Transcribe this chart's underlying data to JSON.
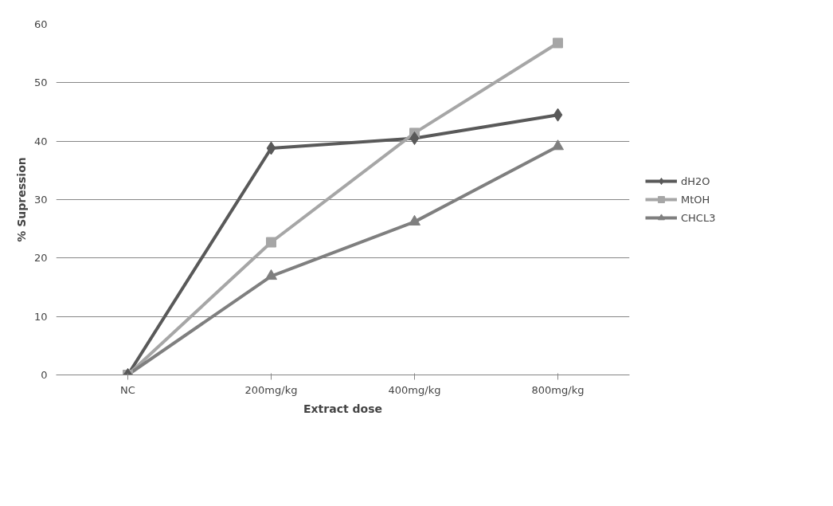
{
  "chart_data": {
    "type": "line",
    "xlabel": "Extract dose",
    "ylabel": "% Supression",
    "categories": [
      "NC",
      "200mg/kg",
      "400mg/kg",
      "800mg/kg"
    ],
    "series": [
      {
        "name": "dH2O",
        "color": "#595959",
        "marker": "diamond",
        "values": [
          0,
          38.8,
          40.5,
          44.5
        ]
      },
      {
        "name": "MtOH",
        "color": "#a6a6a6",
        "marker": "square",
        "values": [
          0,
          22.7,
          41.4,
          56.8
        ]
      },
      {
        "name": "CHCL3",
        "color": "#7f7f7f",
        "marker": "triangle",
        "values": [
          0,
          16.9,
          26.2,
          39.1
        ]
      }
    ],
    "ylim": [
      0,
      60
    ],
    "yticks": [
      0,
      10,
      20,
      30,
      40,
      50,
      60
    ],
    "grid": "y",
    "legend": "right",
    "line_style": "solid"
  }
}
